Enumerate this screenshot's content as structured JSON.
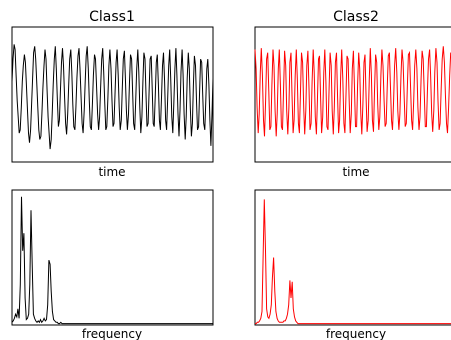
{
  "chart_data": [
    {
      "type": "line",
      "title": "Class1",
      "xlabel": "time",
      "ylabel": "",
      "color": "#000000",
      "grid": false,
      "y": [
        0.2,
        0.55,
        0.78,
        0.7,
        0.3,
        -0.1,
        -0.35,
        -0.6,
        -0.55,
        -0.2,
        0.2,
        0.45,
        0.62,
        0.5,
        0.15,
        -0.25,
        -0.6,
        -0.75,
        -0.55,
        -0.15,
        0.25,
        0.65,
        0.75,
        0.55,
        0.2,
        -0.2,
        -0.55,
        -0.7,
        -0.65,
        -0.3,
        0.1,
        0.45,
        0.7,
        0.55,
        0.1,
        -0.35,
        -0.6,
        -0.85,
        -0.7,
        -0.3,
        0.15,
        0.55,
        0.75,
        0.4,
        -0.1,
        -0.5,
        -0.4,
        0.05,
        0.5,
        0.72,
        0.45,
        -0.05,
        -0.45,
        -0.62,
        -0.3,
        0.15,
        0.55,
        0.7,
        0.35,
        -0.15,
        -0.5,
        -0.55,
        -0.2,
        0.25,
        0.6,
        0.72,
        0.4,
        -0.05,
        -0.45,
        -0.6,
        -0.25,
        0.2,
        0.6,
        0.75,
        0.4,
        -0.1,
        -0.5,
        -0.55,
        -0.15,
        0.3,
        0.62,
        0.55,
        0.15,
        -0.3,
        -0.55,
        -0.35,
        0.1,
        0.55,
        0.72,
        0.35,
        -0.15,
        -0.55,
        -0.5,
        -0.05,
        0.45,
        0.7,
        0.4,
        -0.1,
        -0.5,
        -0.45,
        0.05,
        0.5,
        0.7,
        0.3,
        -0.2,
        -0.55,
        -0.4,
        0.1,
        0.55,
        0.68,
        0.25,
        -0.25,
        -0.55,
        -0.3,
        0.2,
        0.62,
        0.55,
        0.05,
        -0.45,
        -0.55,
        -0.1,
        0.4,
        0.7,
        0.35,
        -0.2,
        -0.6,
        -0.35,
        0.2,
        0.65,
        0.55,
        0.0,
        -0.5,
        -0.45,
        0.05,
        0.55,
        0.6,
        0.1,
        -0.45,
        -0.5,
        0.0,
        0.5,
        0.62,
        0.15,
        -0.4,
        -0.55,
        -0.05,
        0.45,
        0.65,
        0.2,
        -0.4,
        -0.55,
        -0.1,
        0.45,
        0.7,
        0.25,
        -0.35,
        -0.6,
        -0.15,
        0.4,
        0.72,
        0.3,
        -0.3,
        -0.65,
        -0.25,
        0.35,
        0.7,
        0.3,
        -0.3,
        -0.7,
        -0.35,
        0.25,
        0.65,
        0.4,
        -0.2,
        -0.65,
        -0.45,
        0.15,
        0.6,
        0.45,
        -0.1,
        -0.55,
        -0.5,
        0.05,
        0.55,
        0.5,
        0.0,
        -0.45,
        -0.55,
        -0.1,
        0.4,
        0.55,
        0.15,
        -0.4,
        -0.8,
        -0.3,
        0.25
      ],
      "ylim": [
        -1.05,
        1.05
      ]
    },
    {
      "type": "line",
      "title": "Class2",
      "xlabel": "time",
      "ylabel": "",
      "color": "#ff0000",
      "grid": false,
      "y": [
        0.7,
        0.4,
        -0.2,
        -0.6,
        -0.3,
        0.35,
        0.72,
        0.3,
        -0.4,
        -0.65,
        -0.1,
        0.55,
        0.65,
        0.05,
        -0.55,
        -0.5,
        0.15,
        0.7,
        0.45,
        -0.25,
        -0.65,
        -0.3,
        0.4,
        0.7,
        0.15,
        -0.5,
        -0.55,
        0.1,
        0.68,
        0.45,
        -0.25,
        -0.62,
        -0.2,
        0.5,
        0.65,
        0.0,
        -0.6,
        -0.4,
        0.3,
        0.7,
        0.25,
        -0.45,
        -0.6,
        0.05,
        0.65,
        0.5,
        -0.2,
        -0.62,
        -0.25,
        0.45,
        0.68,
        0.1,
        -0.55,
        -0.45,
        0.2,
        0.7,
        0.35,
        -0.35,
        -0.62,
        -0.1,
        0.55,
        0.6,
        -0.05,
        -0.6,
        -0.35,
        0.35,
        0.7,
        0.2,
        -0.5,
        -0.55,
        0.1,
        0.65,
        0.45,
        -0.25,
        -0.62,
        -0.2,
        0.5,
        0.65,
        0.0,
        -0.6,
        -0.4,
        0.3,
        0.7,
        0.25,
        -0.45,
        -0.6,
        0.0,
        0.6,
        0.55,
        -0.1,
        -0.6,
        -0.3,
        0.4,
        0.68,
        0.15,
        -0.5,
        -0.5,
        0.15,
        0.65,
        0.4,
        -0.3,
        -0.62,
        -0.15,
        0.5,
        0.62,
        -0.05,
        -0.58,
        -0.4,
        0.25,
        0.72,
        0.3,
        -0.4,
        -0.58,
        0.05,
        0.62,
        0.5,
        -0.15,
        -0.55,
        -0.35,
        0.3,
        0.7,
        0.45,
        -0.1,
        -0.5,
        -0.45,
        0.1,
        0.6,
        0.65,
        0.15,
        -0.4,
        -0.55,
        -0.1,
        0.45,
        0.72,
        0.35,
        -0.25,
        -0.55,
        -0.3,
        0.3,
        0.7,
        0.5,
        -0.05,
        -0.5,
        -0.45,
        0.1,
        0.62,
        0.65,
        0.15,
        -0.4,
        -0.55,
        -0.1,
        0.45,
        0.7,
        0.4,
        -0.2,
        -0.55,
        -0.35,
        0.25,
        0.68,
        0.55,
        0.0,
        -0.5,
        -0.5,
        0.05,
        0.55,
        0.7,
        0.3,
        -0.3,
        -0.58,
        -0.25,
        0.35,
        0.72,
        0.5,
        -0.1,
        -0.55,
        -0.45,
        0.1,
        0.55,
        0.75,
        0.5,
        0.0,
        -0.45,
        -0.6,
        -0.2,
        0.3,
        0.65,
        0.6,
        0.15,
        -0.35,
        -0.55,
        -0.3
      ],
      "ylim": [
        -1.05,
        1.05
      ]
    },
    {
      "type": "line",
      "title": "",
      "xlabel": "frequency",
      "ylabel": "",
      "color": "#000000",
      "grid": false,
      "y": [
        0.02,
        0.03,
        0.05,
        0.08,
        0.06,
        0.12,
        0.05,
        0.3,
        0.95,
        0.55,
        0.68,
        0.2,
        0.04,
        0.05,
        0.08,
        0.3,
        0.85,
        0.45,
        0.08,
        0.05,
        0.03,
        0.02,
        0.03,
        0.02,
        0.04,
        0.02,
        0.03,
        0.05,
        0.03,
        0.04,
        0.15,
        0.48,
        0.45,
        0.25,
        0.1,
        0.04,
        0.03,
        0.02,
        0.02,
        0.01,
        0.01,
        0.02,
        0.01,
        0.01,
        0.01,
        0.01,
        0.01,
        0.01,
        0.01,
        0.01,
        0.01,
        0.01,
        0.01,
        0.01,
        0.01,
        0.01,
        0.01,
        0.01,
        0.01,
        0.01,
        0.01,
        0.01,
        0.01,
        0.01,
        0.01,
        0.01,
        0.01,
        0.01,
        0.01,
        0.01,
        0.01,
        0.01,
        0.01,
        0.01,
        0.01,
        0.01,
        0.01,
        0.01,
        0.01,
        0.01,
        0.01,
        0.01,
        0.01,
        0.01,
        0.01,
        0.01,
        0.01,
        0.01,
        0.01,
        0.01,
        0.01,
        0.01,
        0.01,
        0.01,
        0.01,
        0.01,
        0.01,
        0.01,
        0.01,
        0.01,
        0.01,
        0.01,
        0.01,
        0.01,
        0.01,
        0.01,
        0.01,
        0.01,
        0.01,
        0.01,
        0.01,
        0.01,
        0.01,
        0.01,
        0.01,
        0.01,
        0.01,
        0.01,
        0.01,
        0.01,
        0.01,
        0.01,
        0.01,
        0.01,
        0.01,
        0.01,
        0.01,
        0.01,
        0.01,
        0.01,
        0.01,
        0.01,
        0.01,
        0.01,
        0.01,
        0.01,
        0.01,
        0.01,
        0.01,
        0.01,
        0.01,
        0.01,
        0.01,
        0.01,
        0.01,
        0.01,
        0.01,
        0.01,
        0.01,
        0.01,
        0.01,
        0.01,
        0.01,
        0.01,
        0.01,
        0.01,
        0.01,
        0.01,
        0.01,
        0.01,
        0.01,
        0.01,
        0.01,
        0.01,
        0.01,
        0.01,
        0.01,
        0.01,
        0.01,
        0.01
      ],
      "ylim": [
        0,
        1.0
      ]
    },
    {
      "type": "line",
      "title": "",
      "xlabel": "frequency",
      "ylabel": "",
      "color": "#ff0000",
      "grid": false,
      "y": [
        0.01,
        0.01,
        0.02,
        0.02,
        0.03,
        0.05,
        0.1,
        0.5,
        0.93,
        0.55,
        0.12,
        0.06,
        0.05,
        0.08,
        0.15,
        0.35,
        0.5,
        0.25,
        0.1,
        0.05,
        0.03,
        0.02,
        0.02,
        0.02,
        0.02,
        0.03,
        0.03,
        0.05,
        0.08,
        0.15,
        0.33,
        0.2,
        0.32,
        0.12,
        0.06,
        0.03,
        0.02,
        0.01,
        0.01,
        0.01,
        0.01,
        0.01,
        0.01,
        0.01,
        0.01,
        0.01,
        0.01,
        0.01,
        0.01,
        0.01,
        0.01,
        0.01,
        0.01,
        0.01,
        0.01,
        0.01,
        0.01,
        0.01,
        0.01,
        0.01,
        0.01,
        0.01,
        0.01,
        0.01,
        0.01,
        0.01,
        0.01,
        0.01,
        0.01,
        0.01,
        0.01,
        0.01,
        0.01,
        0.01,
        0.01,
        0.01,
        0.01,
        0.01,
        0.01,
        0.01,
        0.01,
        0.01,
        0.01,
        0.01,
        0.01,
        0.01,
        0.01,
        0.01,
        0.01,
        0.01,
        0.01,
        0.01,
        0.01,
        0.01,
        0.01,
        0.01,
        0.01,
        0.01,
        0.01,
        0.01,
        0.01,
        0.01,
        0.01,
        0.01,
        0.01,
        0.01,
        0.01,
        0.01,
        0.01,
        0.01,
        0.01,
        0.01,
        0.01,
        0.01,
        0.01,
        0.01,
        0.01,
        0.01,
        0.01,
        0.01,
        0.01,
        0.01,
        0.01,
        0.01,
        0.01,
        0.01,
        0.01,
        0.01,
        0.01,
        0.01,
        0.01,
        0.01,
        0.01,
        0.01,
        0.01,
        0.01,
        0.01,
        0.01,
        0.01,
        0.01,
        0.01,
        0.01,
        0.01,
        0.01,
        0.01,
        0.01,
        0.01,
        0.01,
        0.01,
        0.01,
        0.01,
        0.01,
        0.01,
        0.01,
        0.01,
        0.01,
        0.01,
        0.01,
        0.01,
        0.01,
        0.01,
        0.01,
        0.01,
        0.01,
        0.01,
        0.01,
        0.01,
        0.01,
        0.01,
        0.01,
        0.01,
        0.01,
        0.01,
        0.01
      ],
      "ylim": [
        0,
        1.0
      ]
    }
  ]
}
